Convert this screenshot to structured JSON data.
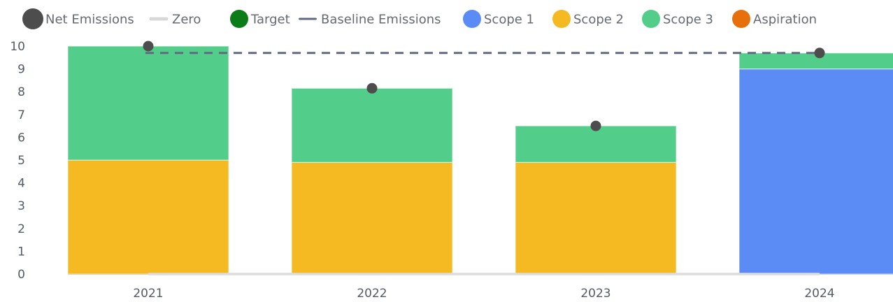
{
  "chart_data": {
    "type": "bar",
    "stacked": true,
    "categories": [
      "2021",
      "2022",
      "2023",
      "2024"
    ],
    "series": [
      {
        "name": "Scope 1",
        "kind": "bar",
        "color": "#5b8cf5",
        "values": [
          0,
          0,
          0,
          9.0
        ]
      },
      {
        "name": "Scope 2",
        "kind": "bar",
        "color": "#f5b921",
        "values": [
          5.0,
          4.9,
          4.9,
          0
        ]
      },
      {
        "name": "Scope 3",
        "kind": "bar",
        "color": "#52ce8a",
        "values": [
          5.0,
          3.25,
          1.6,
          0.7
        ]
      },
      {
        "name": "Net Emissions",
        "kind": "point",
        "color": "#4d4d4d",
        "values": [
          10.0,
          8.15,
          6.5,
          9.7
        ]
      },
      {
        "name": "Baseline Emissions",
        "kind": "dashed-line",
        "color": "#616a80",
        "value": 9.7
      },
      {
        "name": "Zero",
        "kind": "line",
        "color": "#d9d9d9",
        "value": 0
      },
      {
        "name": "Target",
        "kind": "legend-only",
        "color": "#0a7d18"
      },
      {
        "name": "Aspiration",
        "kind": "legend-only",
        "color": "#e8700a"
      }
    ],
    "legend": [
      {
        "name": "Net Emissions",
        "color": "#4d4d4d",
        "symbol": "big-circle"
      },
      {
        "name": "Zero",
        "color": "#d9d9d9",
        "symbol": "line"
      },
      {
        "name": "Target",
        "color": "#0a7d18",
        "symbol": "circle"
      },
      {
        "name": "Baseline Emissions",
        "color": "#616a80",
        "symbol": "line"
      },
      {
        "name": "Scope 1",
        "color": "#5b8cf5",
        "symbol": "circle"
      },
      {
        "name": "Scope 2",
        "color": "#f5b921",
        "symbol": "circle"
      },
      {
        "name": "Scope 3",
        "color": "#52ce8a",
        "symbol": "circle"
      },
      {
        "name": "Aspiration",
        "color": "#e8700a",
        "symbol": "circle"
      }
    ],
    "legend_position": "top",
    "yticks": [
      0,
      1,
      2,
      3,
      4,
      5,
      6,
      7,
      8,
      9,
      10
    ],
    "ylim": [
      0,
      10
    ],
    "title": "",
    "xlabel": "",
    "ylabel": "",
    "grid": false
  }
}
